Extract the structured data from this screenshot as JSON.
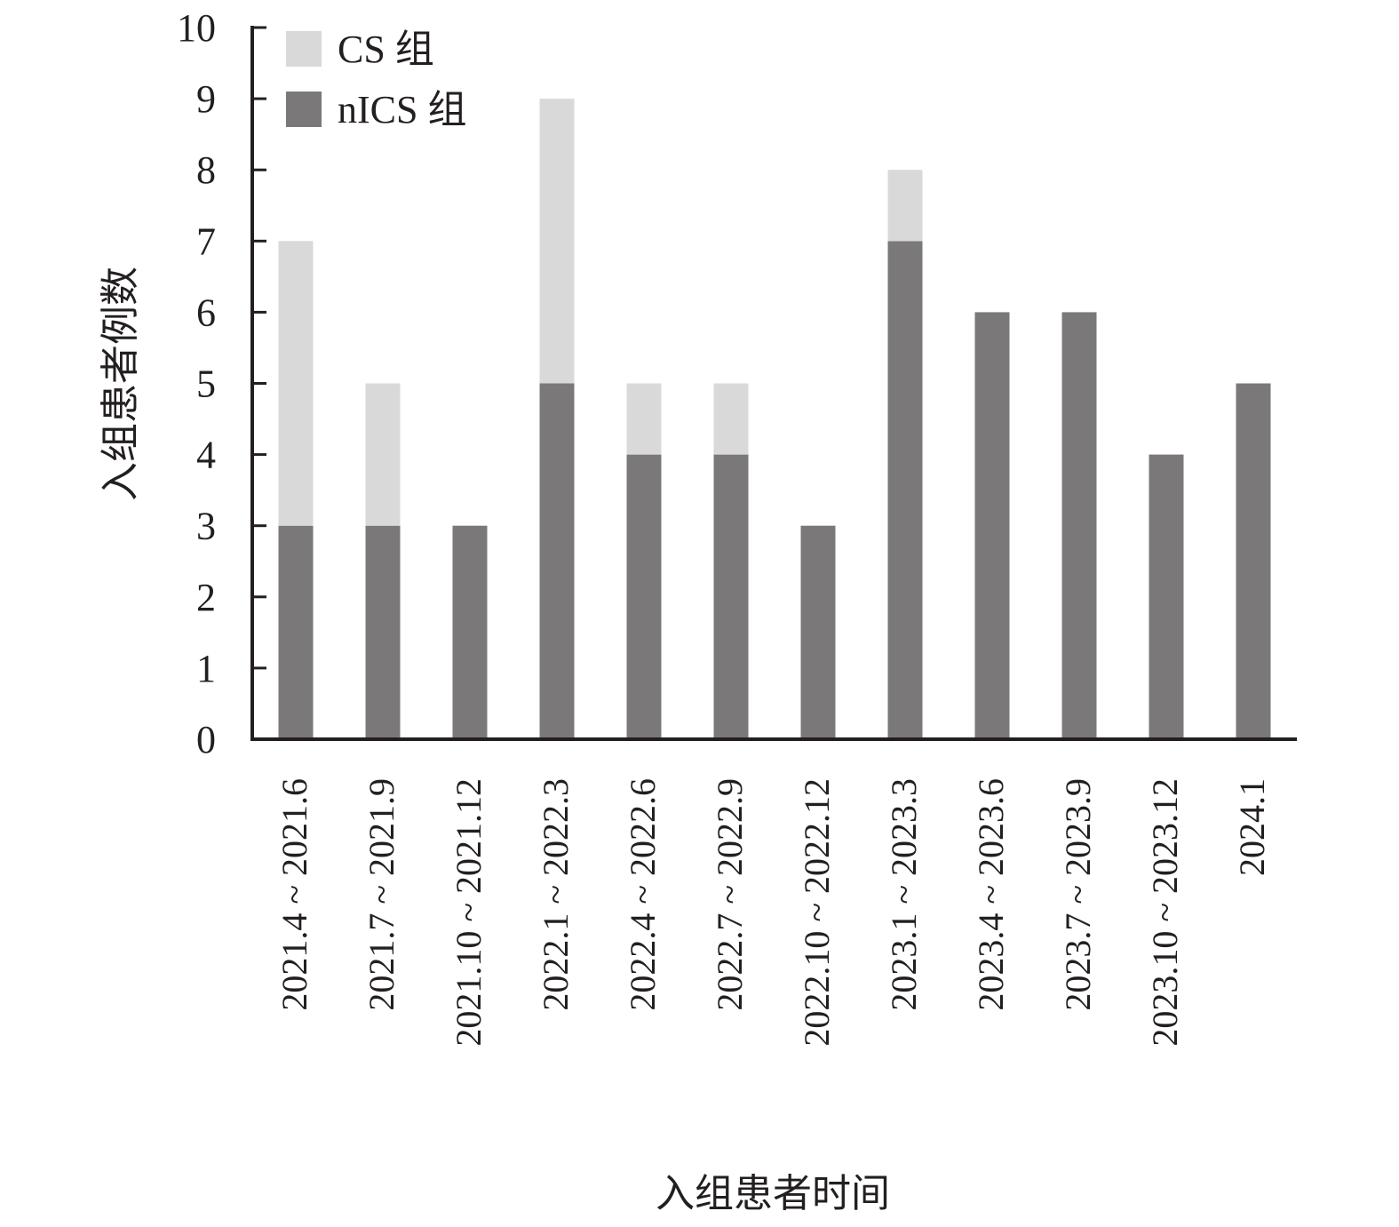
{
  "chart_data": {
    "type": "bar",
    "stacked": true,
    "categories": [
      "2021.4 ~ 2021.6",
      "2021.7 ~ 2021.9",
      "2021.10 ~ 2021.12",
      "2022.1 ~ 2022.3",
      "2022.4 ~ 2022.6",
      "2022.7 ~ 2022.9",
      "2022.10 ~ 2022.12",
      "2023.1 ~ 2023.3",
      "2023.4 ~ 2023.6",
      "2023.7 ~ 2023.9",
      "2023.10 ~ 2023.12",
      "2024.1"
    ],
    "series": [
      {
        "name": "nICS 组",
        "color": "#7a7878",
        "values": [
          3,
          3,
          3,
          5,
          4,
          4,
          3,
          7,
          6,
          6,
          4,
          5
        ]
      },
      {
        "name": "CS 组",
        "color": "#d9d9d9",
        "values": [
          4,
          2,
          0,
          4,
          1,
          1,
          0,
          1,
          0,
          0,
          0,
          0
        ]
      }
    ],
    "legend_order": [
      "CS 组",
      "nICS 组"
    ],
    "legend_position": "top-left",
    "xlabel": "入组患者时间",
    "ylabel": "入组患者例数",
    "ylim": [
      0,
      10
    ],
    "yticks": [
      0,
      1,
      2,
      3,
      4,
      5,
      6,
      7,
      8,
      9,
      10
    ],
    "grid": false,
    "axis_color": "#231f20"
  }
}
